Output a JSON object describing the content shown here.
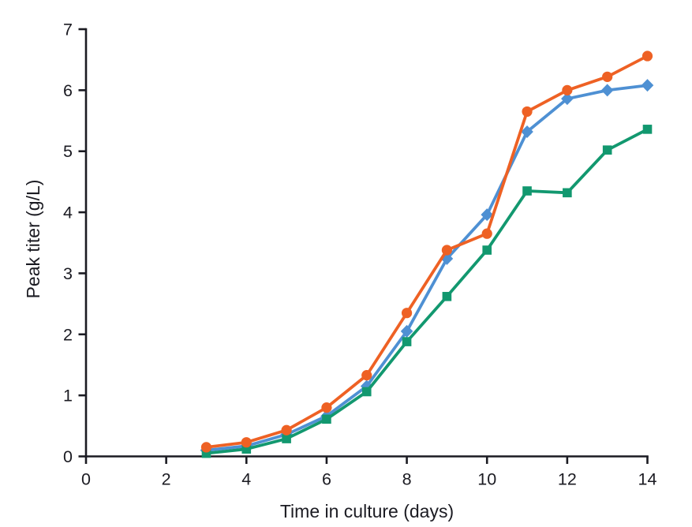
{
  "figure": {
    "background": "#ffffff"
  },
  "chart_data": {
    "type": "line",
    "title": "",
    "xlabel": "Time in culture (days)",
    "ylabel": "Peak titer (g/L)",
    "xlim": [
      0,
      14
    ],
    "ylim": [
      0,
      7
    ],
    "xticks": [
      0,
      2,
      4,
      6,
      8,
      10,
      12,
      14
    ],
    "yticks": [
      0,
      1,
      2,
      3,
      4,
      5,
      6,
      7
    ],
    "grid": false,
    "legend": "none",
    "axis_color": "#1b1b22",
    "text_color": "#1b1b22",
    "x": [
      3,
      4,
      5,
      6,
      7,
      8,
      9,
      10,
      11,
      12,
      13,
      14
    ],
    "series": [
      {
        "name": "series-blue-diamond",
        "marker": "diamond",
        "color": "#4E90D3",
        "values": [
          0.1,
          0.17,
          0.36,
          0.66,
          1.15,
          2.05,
          3.24,
          3.96,
          5.32,
          5.86,
          6.0,
          6.08
        ]
      },
      {
        "name": "series-green-square",
        "marker": "square",
        "color": "#12986F",
        "values": [
          0.05,
          0.12,
          0.29,
          0.61,
          1.06,
          1.88,
          2.62,
          3.38,
          4.35,
          4.32,
          5.02,
          5.36
        ]
      },
      {
        "name": "series-orange-circle",
        "marker": "circle",
        "color": "#EE6124",
        "values": [
          0.15,
          0.23,
          0.43,
          0.8,
          1.33,
          2.35,
          3.38,
          3.65,
          5.65,
          6.0,
          6.22,
          6.56
        ]
      }
    ]
  }
}
